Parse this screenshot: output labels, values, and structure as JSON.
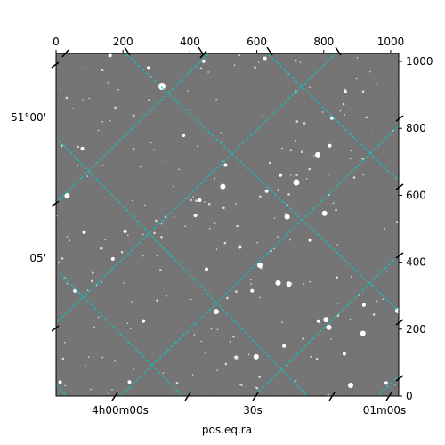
{
  "image_plot": {
    "pixel_axes": {
      "x_ticks": [
        0,
        200,
        400,
        600,
        800,
        1000
      ],
      "y_ticks": [
        0,
        200,
        400,
        600,
        800,
        1000
      ],
      "x_range": [
        0,
        1024
      ],
      "y_range": [
        0,
        1024
      ]
    },
    "world_axes": {
      "ra_tick_labels": [
        "4h00m00s",
        "30s",
        "01m00s"
      ],
      "dec_tick_labels": [
        "51°00'",
        "05'"
      ],
      "xlabel": "pos.eq.ra"
    },
    "grid_color": "#00cccc",
    "frame_color": "#000000",
    "background_gray": "#6f6f6f"
  }
}
